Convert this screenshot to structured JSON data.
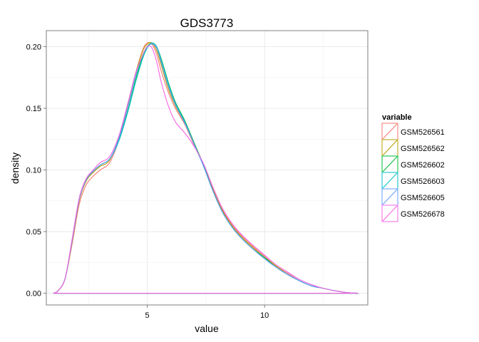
{
  "chart_data": {
    "type": "line",
    "title": "GDS3773",
    "xlabel": "value",
    "ylabel": "density",
    "xlim": [
      0.7,
      14.4
    ],
    "ylim": [
      -0.0095,
      0.213
    ],
    "x_ticks": [
      5,
      10
    ],
    "x_tick_labels": [
      "5",
      "10"
    ],
    "y_ticks": [
      0,
      0.05,
      0.1,
      0.15,
      0.2
    ],
    "y_tick_labels": [
      "0.00",
      "0.05",
      "0.10",
      "0.15",
      "0.20"
    ],
    "grid": true,
    "legend_title": "variable",
    "legend_position": "right",
    "x": [
      1.0,
      1.2,
      1.5,
      1.8,
      2.1,
      2.4,
      2.7,
      3.0,
      3.4,
      3.8,
      4.2,
      4.5,
      4.8,
      5.0,
      5.2,
      5.4,
      5.6,
      5.9,
      6.2,
      6.6,
      7.0,
      7.4,
      7.8,
      8.2,
      8.6,
      9.0,
      9.5,
      10.0,
      10.5,
      11.0,
      11.5,
      12.0,
      12.5,
      13.0,
      13.5,
      14.0
    ],
    "series": [
      {
        "name": "GSM526561",
        "color": "#F8766D",
        "values": [
          0.0,
          0.002,
          0.012,
          0.04,
          0.072,
          0.088,
          0.095,
          0.1,
          0.106,
          0.125,
          0.155,
          0.178,
          0.197,
          0.203,
          0.202,
          0.194,
          0.18,
          0.163,
          0.15,
          0.137,
          0.12,
          0.104,
          0.085,
          0.068,
          0.056,
          0.047,
          0.038,
          0.03,
          0.022,
          0.016,
          0.01,
          0.006,
          0.004,
          0.002,
          0.0005,
          0.0
        ]
      },
      {
        "name": "GSM526562",
        "color": "#B79F00",
        "values": [
          0.0,
          0.002,
          0.012,
          0.042,
          0.075,
          0.091,
          0.098,
          0.103,
          0.108,
          0.127,
          0.155,
          0.178,
          0.196,
          0.202,
          0.203,
          0.197,
          0.185,
          0.166,
          0.152,
          0.138,
          0.121,
          0.104,
          0.084,
          0.067,
          0.055,
          0.046,
          0.037,
          0.029,
          0.022,
          0.015,
          0.01,
          0.006,
          0.004,
          0.002,
          0.0005,
          0.0
        ]
      },
      {
        "name": "GSM526602",
        "color": "#00BA38",
        "values": [
          0.0,
          0.002,
          0.012,
          0.043,
          0.076,
          0.092,
          0.099,
          0.104,
          0.109,
          0.125,
          0.15,
          0.173,
          0.192,
          0.2,
          0.203,
          0.2,
          0.19,
          0.171,
          0.155,
          0.14,
          0.122,
          0.104,
          0.083,
          0.066,
          0.054,
          0.045,
          0.036,
          0.029,
          0.021,
          0.015,
          0.01,
          0.006,
          0.004,
          0.002,
          0.0005,
          0.0
        ]
      },
      {
        "name": "GSM526603",
        "color": "#00BFC4",
        "values": [
          0.0,
          0.002,
          0.012,
          0.043,
          0.076,
          0.092,
          0.099,
          0.104,
          0.109,
          0.124,
          0.149,
          0.171,
          0.19,
          0.199,
          0.203,
          0.2,
          0.189,
          0.17,
          0.154,
          0.139,
          0.121,
          0.103,
          0.083,
          0.066,
          0.054,
          0.045,
          0.036,
          0.028,
          0.021,
          0.015,
          0.01,
          0.006,
          0.004,
          0.002,
          0.0005,
          0.0
        ]
      },
      {
        "name": "GSM526605",
        "color": "#619CFF",
        "values": [
          0.0,
          0.002,
          0.012,
          0.043,
          0.076,
          0.092,
          0.099,
          0.104,
          0.109,
          0.126,
          0.153,
          0.176,
          0.193,
          0.2,
          0.202,
          0.199,
          0.187,
          0.168,
          0.153,
          0.138,
          0.121,
          0.103,
          0.083,
          0.066,
          0.054,
          0.045,
          0.036,
          0.028,
          0.021,
          0.015,
          0.01,
          0.006,
          0.004,
          0.002,
          0.0005,
          0.0
        ]
      },
      {
        "name": "GSM526678",
        "color": "#F564E3",
        "values": [
          0.0,
          0.002,
          0.012,
          0.044,
          0.077,
          0.093,
          0.1,
          0.106,
          0.111,
          0.128,
          0.156,
          0.178,
          0.193,
          0.2,
          0.199,
          0.188,
          0.171,
          0.152,
          0.139,
          0.13,
          0.119,
          0.105,
          0.086,
          0.069,
          0.057,
          0.048,
          0.039,
          0.031,
          0.023,
          0.017,
          0.011,
          0.007,
          0.004,
          0.002,
          0.0005,
          0.0
        ]
      }
    ]
  }
}
